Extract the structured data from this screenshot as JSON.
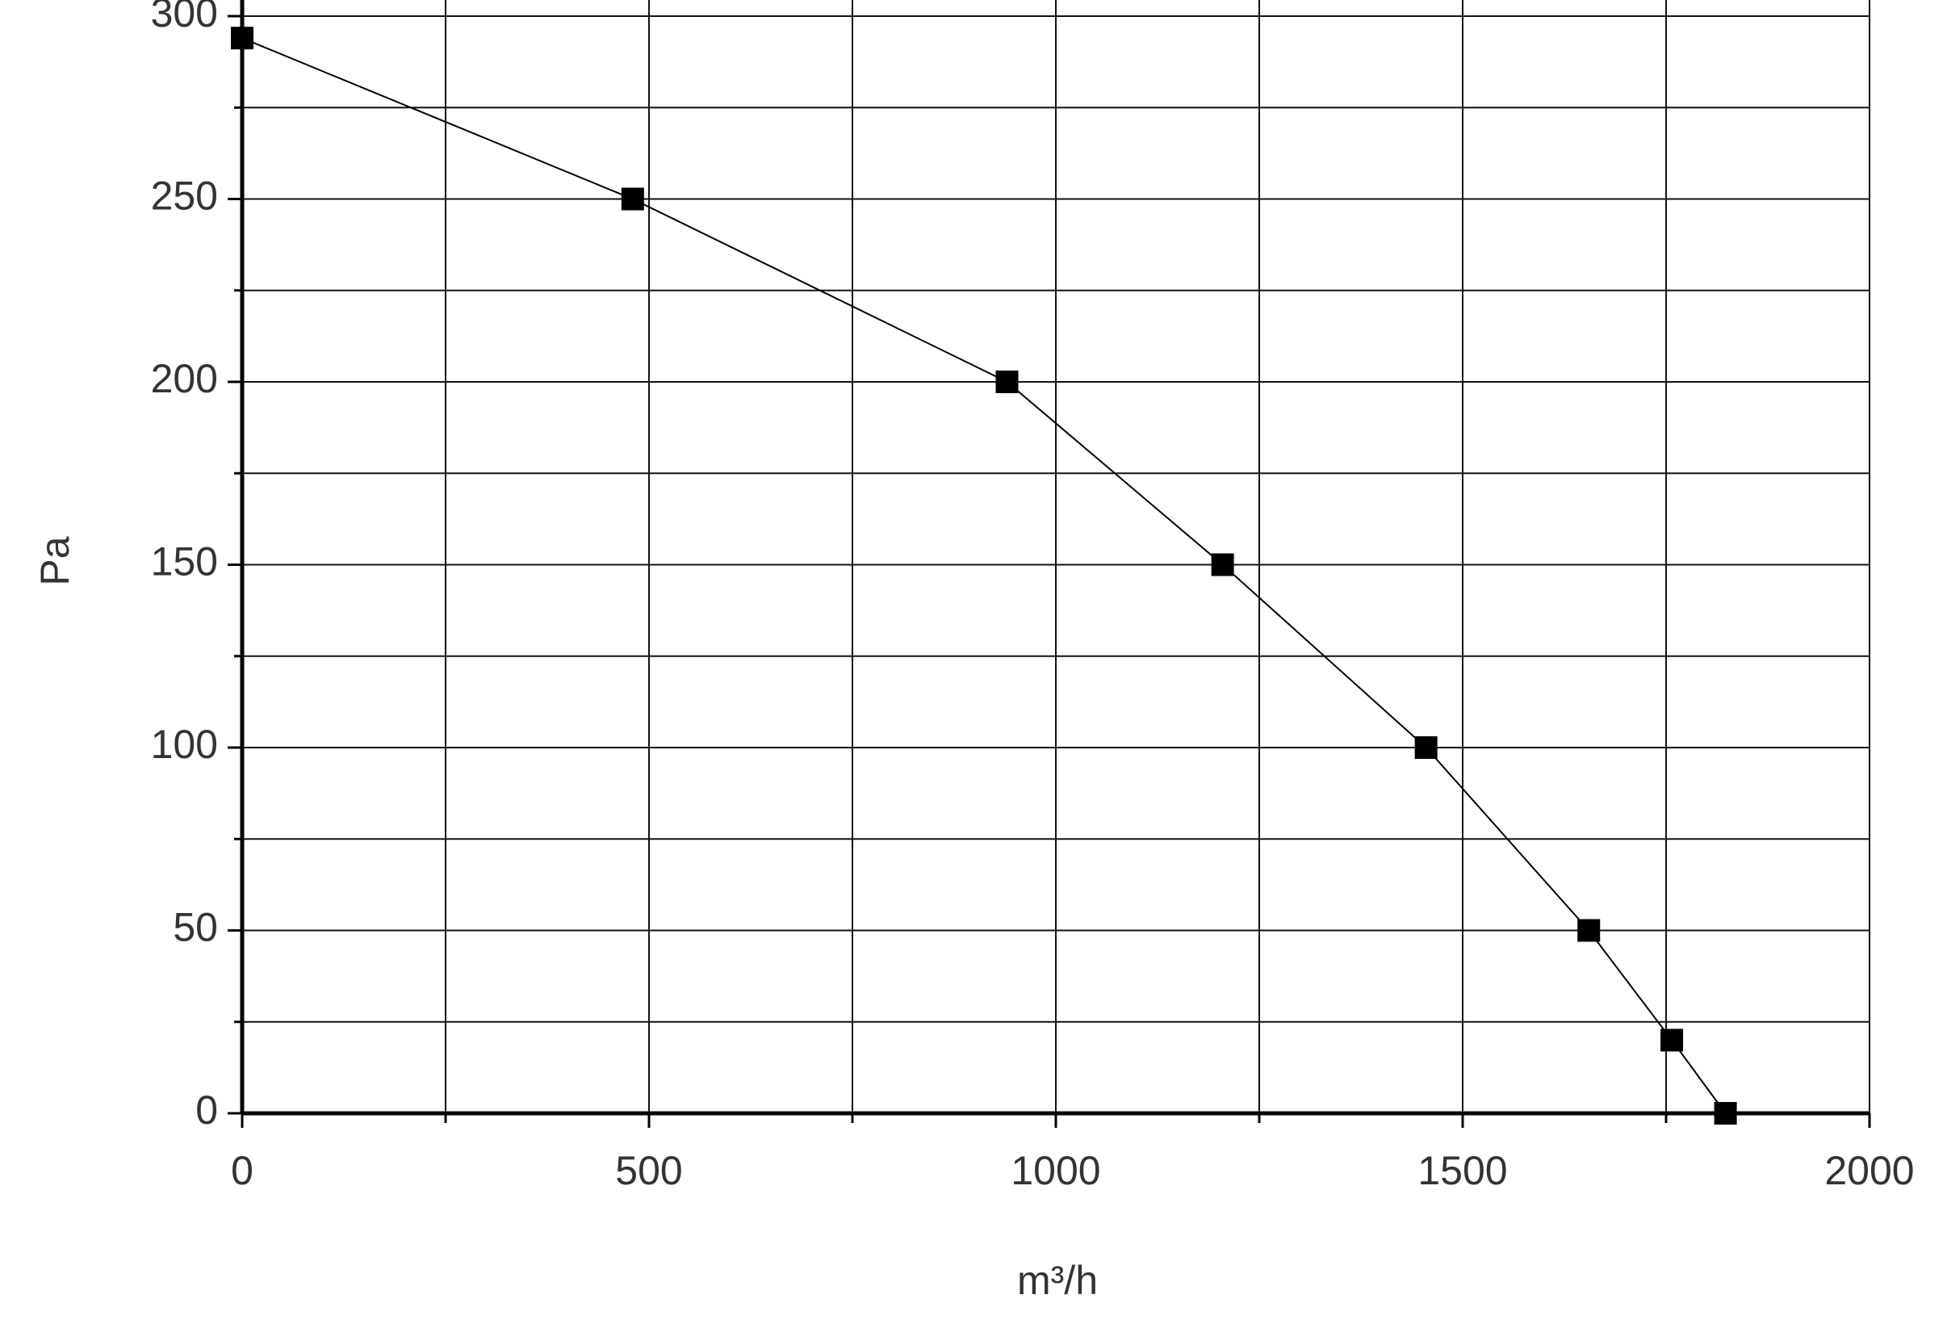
{
  "chart_data": {
    "type": "line",
    "xlabel": "m³/h",
    "ylabel": "Pa",
    "x": [
      0,
      480,
      940,
      1205,
      1455,
      1655,
      1757,
      1823
    ],
    "series": [
      {
        "color": "#000000",
        "values": [
          294,
          250,
          200,
          150,
          100,
          50,
          20,
          0
        ]
      }
    ],
    "xlim": [
      0,
      2000
    ],
    "xticks": [
      0,
      500,
      1000,
      1500,
      2000
    ],
    "xminorticks": [
      250,
      750,
      1250,
      1750
    ],
    "ylim": [
      0,
      300
    ],
    "yticks": [
      0,
      50,
      100,
      150,
      200,
      250,
      300
    ],
    "yminorticks": [
      25,
      75,
      125,
      175,
      225,
      275
    ],
    "grid": true,
    "marker": "square"
  }
}
